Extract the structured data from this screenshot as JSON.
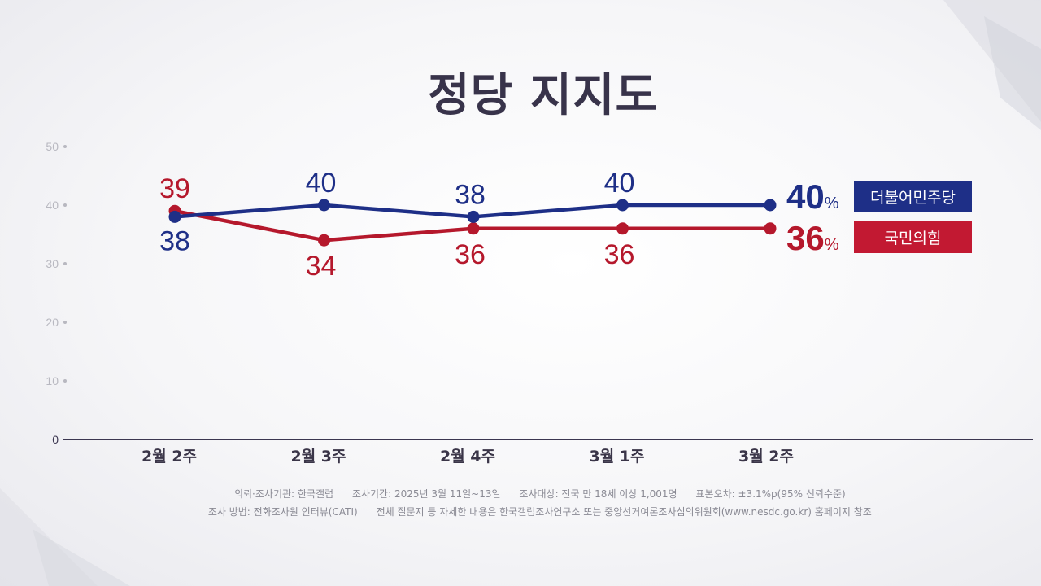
{
  "title": "정당 지지도",
  "colors": {
    "dp": "#1e2f87",
    "ppp": "#b5182c",
    "axis": "#3b3650",
    "tick": "#b8b8c0"
  },
  "chart_data": {
    "type": "line",
    "title": "정당 지지도",
    "categories": [
      "2월 2주",
      "2월 3주",
      "2월 4주",
      "3월 1주",
      "3월 2주"
    ],
    "yticks": [
      0,
      10,
      20,
      30,
      40,
      50
    ],
    "ylim": [
      0,
      50
    ],
    "series": [
      {
        "name": "더불어민주당",
        "values": [
          38,
          40,
          38,
          40,
          40
        ],
        "final_label": "40",
        "color": "#1e2f87"
      },
      {
        "name": "국민의힘",
        "values": [
          39,
          34,
          36,
          36,
          36
        ],
        "final_label": "36",
        "color": "#b5182c"
      }
    ],
    "unit": "%",
    "grid": false,
    "legend_position": "right"
  },
  "source": {
    "line1": [
      "의뢰·조사기관: 한국갤럽",
      "조사기간: 2025년 3월 11일~13일",
      "조사대상: 전국 만 18세 이상 1,001명",
      "표본오차: ±3.1%p(95% 신뢰수준)"
    ],
    "line2": [
      "조사 방법: 전화조사원 인터뷰(CATI)",
      "전체 질문지 등 자세한 내용은 한국갤럽조사연구소 또는 중앙선거여론조사심의위원회(www.nesdc.go.kr) 홈페이지 참조"
    ]
  }
}
